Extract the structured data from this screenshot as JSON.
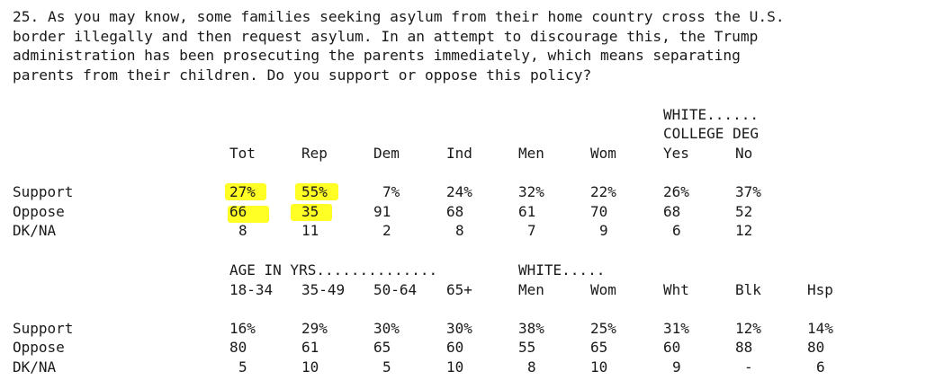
{
  "question": {
    "lines": [
      "25. As you may know, some families seeking asylum from their home country cross the U.S.",
      "border illegally and then request asylum. In an attempt to discourage this, the Trump",
      "administration has been prosecuting the parents immediately, which means separating",
      "parents from their children. Do you support or oppose this policy?"
    ]
  },
  "table1": {
    "group_header": [
      "WHITE......",
      "COLLEGE DEG"
    ],
    "columns": [
      "Tot",
      "Rep",
      "Dem",
      "Ind",
      "Men",
      "Wom",
      "Yes",
      "No"
    ],
    "rows": [
      {
        "label": "Support",
        "values": [
          "27%",
          "55%",
          "7%",
          "24%",
          "32%",
          "22%",
          "26%",
          "37%"
        ]
      },
      {
        "label": "Oppose",
        "values": [
          "66",
          "35",
          "91",
          "68",
          "61",
          "70",
          "68",
          "52"
        ]
      },
      {
        "label": "DK/NA",
        "values": [
          "8",
          "11",
          "2",
          "8",
          "7",
          "9",
          "6",
          "12"
        ]
      }
    ]
  },
  "table2": {
    "group_header_age": "AGE IN YRS..............",
    "group_header_white": "WHITE.....",
    "columns": [
      "18-34",
      "35-49",
      "50-64",
      "65+",
      "Men",
      "Wom",
      "Wht",
      "Blk",
      "Hsp"
    ],
    "rows": [
      {
        "label": "Support",
        "values": [
          "16%",
          "29%",
          "30%",
          "30%",
          "38%",
          "25%",
          "31%",
          "12%",
          "14%"
        ]
      },
      {
        "label": "Oppose",
        "values": [
          "80",
          "61",
          "65",
          "60",
          "55",
          "65",
          "60",
          "88",
          "80"
        ]
      },
      {
        "label": "DK/NA",
        "values": [
          "5",
          "10",
          "5",
          "10",
          "8",
          "10",
          "9",
          "-",
          "6"
        ]
      }
    ]
  },
  "colors": {
    "highlight": "#ffff00",
    "text": "#1a1a1a"
  }
}
